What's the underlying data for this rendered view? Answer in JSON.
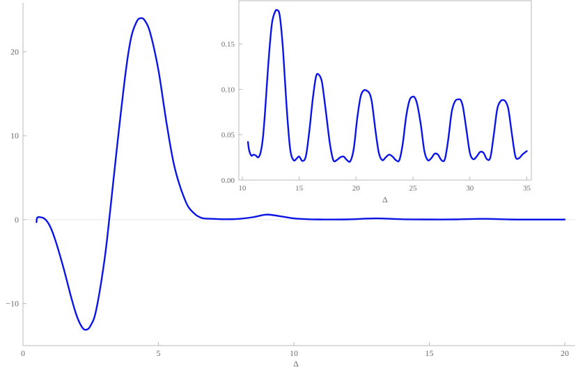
{
  "colors": {
    "curve": "#0a14e6",
    "axis": "#b9b9b9",
    "text": "#6a6a6a"
  },
  "chart_data": [
    {
      "id": "main",
      "type": "line",
      "title": "",
      "xlabel": "Δ",
      "ylabel": "",
      "xlim": [
        0,
        20
      ],
      "ylim": [
        -15,
        25
      ],
      "xticks": [
        0,
        5,
        10,
        15,
        20
      ],
      "yticks": [
        -10,
        0,
        10,
        20
      ],
      "grid": false,
      "series": [
        {
          "x": [
            0.5,
            0.52,
            0.6,
            0.8,
            1.0,
            1.2,
            1.5,
            1.8,
            2.0,
            2.2,
            2.35,
            2.5,
            2.7,
            3.0,
            3.2,
            3.5,
            3.8,
            4.0,
            4.2,
            4.35,
            4.5,
            4.7,
            5.0,
            5.3,
            5.6,
            6.0,
            6.3,
            6.6,
            7.0,
            7.5,
            8.0,
            8.5,
            9.0,
            9.5,
            10.0,
            10.5,
            11.0,
            12.0,
            13.0,
            14.0,
            15.0,
            16.0,
            17.0,
            18.0,
            19.0,
            20.0
          ],
          "y": [
            -0.3,
            0.2,
            0.3,
            0.1,
            -0.8,
            -2.5,
            -5.8,
            -9.5,
            -11.6,
            -12.9,
            -13.1,
            -12.6,
            -10.8,
            -5.0,
            0.5,
            9.5,
            17.8,
            21.8,
            23.6,
            24.0,
            23.7,
            22.2,
            17.8,
            11.5,
            6.2,
            2.2,
            0.8,
            0.2,
            0.1,
            0.05,
            0.1,
            0.3,
            0.6,
            0.4,
            0.15,
            0.05,
            0.02,
            0.03,
            0.15,
            0.05,
            0.02,
            0.03,
            0.1,
            0.02,
            0.01,
            0.01
          ]
        }
      ]
    },
    {
      "id": "inset",
      "type": "line",
      "title": "",
      "xlabel": "Δ",
      "ylabel": "",
      "xlim": [
        9.7,
        35.4
      ],
      "ylim": [
        0,
        0.19
      ],
      "xticks": [
        10,
        15,
        20,
        25,
        30,
        35
      ],
      "yticks": [
        0.0,
        0.05,
        0.1,
        0.15
      ],
      "ytick_labels": [
        "0.00",
        "0.05",
        "0.10",
        "0.15"
      ],
      "grid": false,
      "series": [
        {
          "x": [
            10.5,
            10.6,
            10.8,
            11.0,
            11.2,
            11.4,
            11.6,
            11.8,
            12.0,
            12.3,
            12.6,
            12.9,
            13.1,
            13.25,
            13.4,
            13.6,
            13.9,
            14.2,
            14.5,
            14.8,
            15.0,
            15.3,
            15.6,
            15.9,
            16.2,
            16.5,
            16.8,
            17.0,
            17.2,
            17.4,
            17.7,
            18.0,
            18.3,
            18.6,
            18.9,
            19.2,
            19.5,
            19.8,
            20.1,
            20.4,
            20.7,
            21.0,
            21.2,
            21.4,
            21.7,
            22.0,
            22.3,
            22.6,
            22.9,
            23.2,
            23.5,
            23.8,
            24.1,
            24.4,
            24.7,
            25.0,
            25.2,
            25.4,
            25.7,
            26.0,
            26.3,
            26.6,
            26.9,
            27.2,
            27.5,
            27.8,
            28.1,
            28.4,
            28.7,
            29.0,
            29.2,
            29.4,
            29.7,
            30.0,
            30.3,
            30.6,
            30.9,
            31.2,
            31.5,
            31.8,
            32.1,
            32.4,
            32.7,
            33.0,
            33.2,
            33.4,
            33.7,
            34.0,
            34.3,
            34.6,
            34.9,
            35.0
          ],
          "y": [
            0.042,
            0.033,
            0.027,
            0.028,
            0.027,
            0.025,
            0.03,
            0.045,
            0.075,
            0.13,
            0.172,
            0.186,
            0.187,
            0.184,
            0.17,
            0.14,
            0.08,
            0.035,
            0.022,
            0.024,
            0.026,
            0.021,
            0.027,
            0.055,
            0.09,
            0.115,
            0.115,
            0.108,
            0.09,
            0.07,
            0.04,
            0.022,
            0.022,
            0.025,
            0.026,
            0.022,
            0.021,
            0.035,
            0.068,
            0.092,
            0.099,
            0.098,
            0.095,
            0.085,
            0.055,
            0.03,
            0.022,
            0.025,
            0.028,
            0.026,
            0.022,
            0.022,
            0.04,
            0.07,
            0.088,
            0.092,
            0.09,
            0.082,
            0.06,
            0.032,
            0.022,
            0.024,
            0.029,
            0.028,
            0.022,
            0.023,
            0.045,
            0.075,
            0.087,
            0.089,
            0.088,
            0.08,
            0.055,
            0.03,
            0.023,
            0.026,
            0.031,
            0.03,
            0.023,
            0.025,
            0.05,
            0.078,
            0.087,
            0.088,
            0.085,
            0.077,
            0.05,
            0.026,
            0.024,
            0.028,
            0.031,
            0.032
          ]
        }
      ]
    }
  ]
}
